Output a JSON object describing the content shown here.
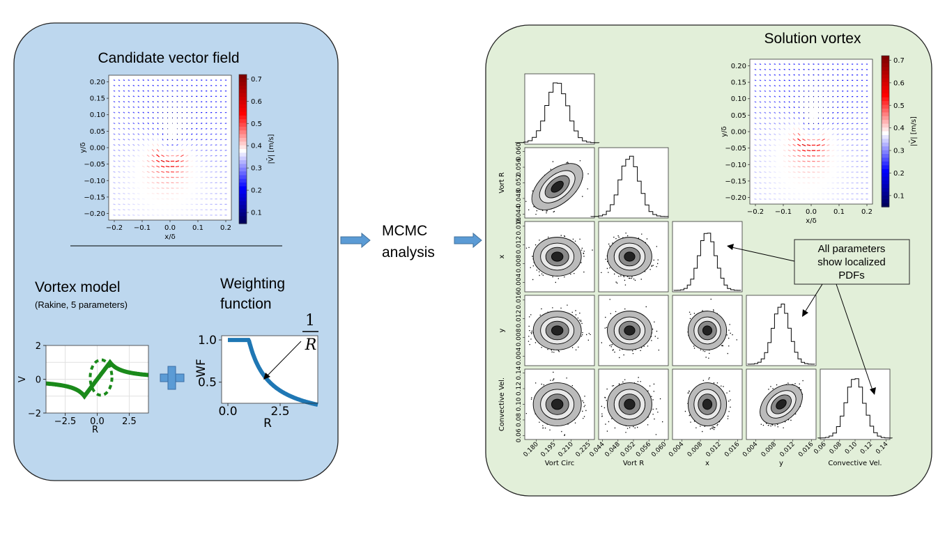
{
  "left_panel": {
    "title": "Candidate vector field",
    "vortex_model_title": "Vortex model",
    "vortex_model_subtitle": "(Rakine, 5 parameters)",
    "weighting_title_line1": "Weighting",
    "weighting_title_line2": "function",
    "fraction_numerator": "1",
    "fraction_denominator": "R",
    "plus_symbol": "+"
  },
  "arrow_label": {
    "line1": "MCMC",
    "line2": "analysis"
  },
  "right_panel": {
    "title": "Solution vortex",
    "callout": [
      "All parameters",
      "show localized",
      "PDFs"
    ]
  },
  "colors": {
    "left_panel_fill": "#bdd7ee",
    "right_panel_fill": "#e2efd9",
    "flow_arrow": "#5b9bd5",
    "vortex_curve": "#1a8a1a",
    "weighting_curve": "#1f77b4"
  },
  "chart_data": [
    {
      "type": "quiver",
      "name": "candidate-field",
      "x_ticks": [
        "−0.2",
        "−0.1",
        "0.0",
        "0.1",
        "0.2"
      ],
      "y_ticks": [
        "0.20",
        "0.15",
        "0.10",
        "0.05",
        "0.00",
        "−0.05",
        "−0.10",
        "−0.15",
        "−0.20"
      ],
      "xlabel": "x/δ",
      "ylabel": "y/δ",
      "colorbar_label": "|V̄| [m/s]",
      "colorbar_ticks": [
        "0.7",
        "0.6",
        "0.5",
        "0.4",
        "0.3",
        "0.2",
        "0.1"
      ],
      "xlim": [
        -0.22,
        0.22
      ],
      "ylim": [
        -0.22,
        0.22
      ],
      "colorbar_range": [
        0.05,
        0.72
      ],
      "vortex_center": [
        0.0,
        0.0
      ],
      "vortex_radius": 0.05
    },
    {
      "type": "quiver",
      "name": "solution-field",
      "x_ticks": [
        "−0.2",
        "−0.1",
        "0.0",
        "0.1",
        "0.2"
      ],
      "y_ticks": [
        "0.20",
        "0.15",
        "0.10",
        "0.05",
        "0.00",
        "−0.05",
        "−0.10",
        "−0.15",
        "−0.20"
      ],
      "xlabel": "x/δ",
      "ylabel": "y/δ",
      "colorbar_label": "|V̄| [m/s]",
      "colorbar_ticks": [
        "0.7",
        "0.6",
        "0.5",
        "0.4",
        "0.3",
        "0.2",
        "0.1"
      ],
      "xlim": [
        -0.22,
        0.22
      ],
      "ylim": [
        -0.22,
        0.22
      ],
      "colorbar_range": [
        0.05,
        0.72
      ],
      "vortex_center": [
        0.0,
        0.0
      ],
      "vortex_radius": 0.05
    },
    {
      "type": "line",
      "name": "vortex-model",
      "x_ticks": [
        "−2.5",
        "0.0",
        "2.5"
      ],
      "y_ticks": [
        "2",
        "0",
        "−2"
      ],
      "xlabel": "R",
      "ylabel": "V",
      "xlim": [
        -4,
        4
      ],
      "ylim": [
        -2,
        2
      ],
      "core_radius": 1.0,
      "peak_velocity": 1.0
    },
    {
      "type": "line",
      "name": "weighting-function",
      "x_ticks": [
        "0.0",
        "2.5"
      ],
      "y_ticks": [
        "1.0",
        "0.5"
      ],
      "xlabel": "R",
      "ylabel": "WF",
      "xlim": [
        -0.3,
        4.3
      ],
      "ylim": [
        0.25,
        1.05
      ],
      "flat_until": 1.0
    },
    {
      "type": "corner",
      "name": "posterior-corner-plot",
      "parameters": [
        {
          "name": "Vort Circ",
          "mean": 0.198,
          "std": 0.009,
          "range": [
            0.17,
            0.23
          ],
          "ticks": [
            "0.180",
            "0.195",
            "0.210",
            "0.225"
          ]
        },
        {
          "name": "Vort R",
          "mean": 0.051,
          "std": 0.0025,
          "range": [
            0.043,
            0.061
          ],
          "ticks": [
            "0.044",
            "0.048",
            "0.052",
            "0.056",
            "0.060"
          ]
        },
        {
          "name": "x",
          "mean": 0.0095,
          "std": 0.0018,
          "range": [
            0.002,
            0.017
          ],
          "ticks": [
            "0.004",
            "0.008",
            "0.012",
            "0.016"
          ]
        },
        {
          "name": "y",
          "mean": 0.0095,
          "std": 0.0018,
          "range": [
            0.002,
            0.017
          ],
          "ticks": [
            "0.004",
            "0.008",
            "0.012",
            "0.016"
          ]
        },
        {
          "name": "Convective Vel.",
          "mean": 0.1,
          "std": 0.012,
          "range": [
            0.055,
            0.145
          ],
          "ticks": [
            "0.06",
            "0.08",
            "0.10",
            "0.12",
            "0.14"
          ]
        }
      ],
      "correlated_pairs": [
        [
          1,
          0
        ],
        [
          4,
          3
        ]
      ]
    }
  ]
}
